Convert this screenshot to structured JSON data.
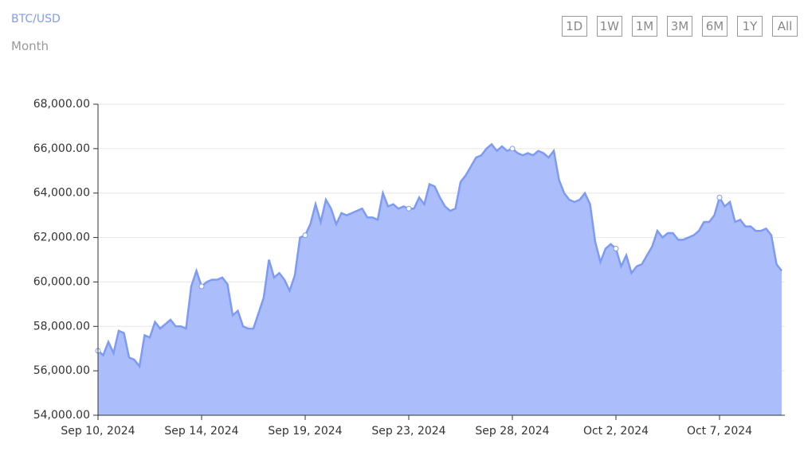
{
  "header": {
    "title": "BTC/USD",
    "subtitle": "Month"
  },
  "buttons": [
    "1D",
    "1W",
    "1M",
    "3M",
    "6M",
    "1Y",
    "All"
  ],
  "chart_data": {
    "type": "area",
    "categories": [
      "Sep 10, 2024",
      null,
      null,
      null,
      null,
      null,
      null,
      null,
      null,
      null,
      null,
      null,
      null,
      null,
      null,
      null,
      null,
      null,
      null,
      null,
      "Sep 14, 2024",
      null,
      null,
      null,
      null,
      null,
      null,
      null,
      null,
      null,
      null,
      null,
      null,
      null,
      null,
      null,
      null,
      null,
      null,
      null,
      "Sep 19, 2024",
      null,
      null,
      null,
      null,
      null,
      null,
      null,
      null,
      null,
      null,
      null,
      null,
      null,
      null,
      null,
      null,
      null,
      null,
      null,
      "Sep 23, 2024",
      null,
      null,
      null,
      null,
      null,
      null,
      null,
      null,
      null,
      null,
      null,
      null,
      null,
      null,
      null,
      null,
      null,
      null,
      null,
      "Sep 28, 2024",
      null,
      null,
      null,
      null,
      null,
      null,
      null,
      null,
      null,
      null,
      null,
      null,
      null,
      null,
      null,
      null,
      null,
      null,
      null,
      "Oct 2, 2024",
      null,
      null,
      null,
      null,
      null,
      null,
      null,
      null,
      null,
      null,
      null,
      null,
      null,
      null,
      null,
      null,
      null,
      null,
      null,
      "Oct 7, 2024",
      null,
      null,
      null,
      null,
      null,
      null,
      null,
      null,
      null,
      null,
      null,
      null
    ],
    "series": [
      {
        "color": "#7d9af5",
        "fill": "#abbefb",
        "values": [
          56900,
          56700,
          57300,
          56800,
          57800,
          57700,
          56600,
          56500,
          56200,
          57600,
          57500,
          58200,
          57900,
          58100,
          58300,
          58000,
          58000,
          57900,
          59800,
          60500,
          59800,
          60000,
          60100,
          60100,
          60200,
          59900,
          58500,
          58700,
          58000,
          57900,
          57900,
          58600,
          59300,
          61000,
          60200,
          60400,
          60100,
          59600,
          60300,
          62000,
          62100,
          62600,
          63500,
          62700,
          63700,
          63300,
          62600,
          63100,
          63000,
          63100,
          63200,
          63300,
          62900,
          62900,
          62800,
          64000,
          63400,
          63500,
          63300,
          63400,
          63300,
          63300,
          63800,
          63500,
          64400,
          64300,
          63800,
          63400,
          63200,
          63300,
          64500,
          64800,
          65200,
          65600,
          65700,
          66000,
          66200,
          65900,
          66100,
          65900,
          66000,
          65800,
          65700,
          65800,
          65700,
          65900,
          65800,
          65600,
          65900,
          64600,
          64000,
          63700,
          63600,
          63700,
          64000,
          63500,
          61800,
          60900,
          61500,
          61700,
          61500,
          60700,
          61200,
          60400,
          60700,
          60800,
          61200,
          61600,
          62300,
          62000,
          62200,
          62200,
          61900,
          61900,
          62000,
          62100,
          62300,
          62700,
          62700,
          63000,
          63800,
          63400,
          63600,
          62700,
          62800,
          62500,
          62500,
          62300,
          62300,
          62400,
          62100,
          60800,
          60500
        ]
      }
    ],
    "ylim": [
      54000,
      68000
    ],
    "yticks": [
      {
        "value": 54000,
        "label": "54,000.00"
      },
      {
        "value": 56000,
        "label": "56,000.00"
      },
      {
        "value": 58000,
        "label": "58,000.00"
      },
      {
        "value": 60000,
        "label": "60,000.00"
      },
      {
        "value": 62000,
        "label": "62,000.00"
      },
      {
        "value": 64000,
        "label": "64,000.00"
      },
      {
        "value": 66000,
        "label": "66,000.00"
      },
      {
        "value": 68000,
        "label": "68,000.00"
      }
    ],
    "grid": true
  }
}
